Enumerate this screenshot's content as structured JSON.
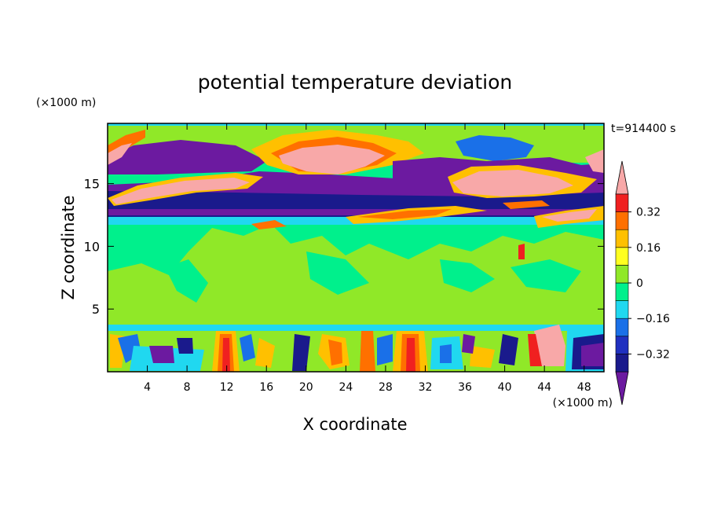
{
  "chart_data": {
    "type": "heatmap",
    "title": "potential temperature deviation",
    "xlabel": "X coordinate",
    "ylabel": "Z coordinate",
    "x_unit": "(×1000 m)",
    "z_unit": "(×1000 m)",
    "time_label": "t=914400 s",
    "xlim": [
      0,
      50
    ],
    "ylim": [
      0,
      19.8
    ],
    "x_ticks": [
      "4",
      "8",
      "12",
      "16",
      "20",
      "24",
      "28",
      "32",
      "36",
      "40",
      "44",
      "48"
    ],
    "y_ticks": [
      "5",
      "10",
      "15"
    ],
    "colorbar": {
      "levels": [
        -0.4,
        -0.32,
        -0.24,
        -0.16,
        -0.08,
        0,
        0.08,
        0.16,
        0.24,
        0.32,
        0.4
      ],
      "tick_labels": [
        "0.32",
        "0.16",
        "0",
        "−0.16",
        "−0.32"
      ],
      "colors_low_to_high": [
        "#6c1aa0",
        "#1a1a8c",
        "#2030c0",
        "#1a70e8",
        "#20d8f0",
        "#00f08c",
        "#90e828",
        "#ffff20",
        "#ffc000",
        "#ff7000",
        "#f02020",
        "#f8a8a8"
      ]
    },
    "layers": [
      {
        "z_range": [
          0,
          3.6
        ],
        "pattern": "strong convective mixed layer with alternating warm and cool plumes"
      },
      {
        "z_range": [
          3.6,
          11.5
        ],
        "pattern": "near-neutral mid troposphere, values around 0 to +0.08"
      },
      {
        "z_range": [
          11.5,
          13.2
        ],
        "pattern": "cold stable band near -0.4"
      },
      {
        "z_range": [
          13.2,
          19.8
        ],
        "pattern": "upper layers with alternating warm (>0.4) and cold (<-0.4) sheets"
      }
    ]
  }
}
